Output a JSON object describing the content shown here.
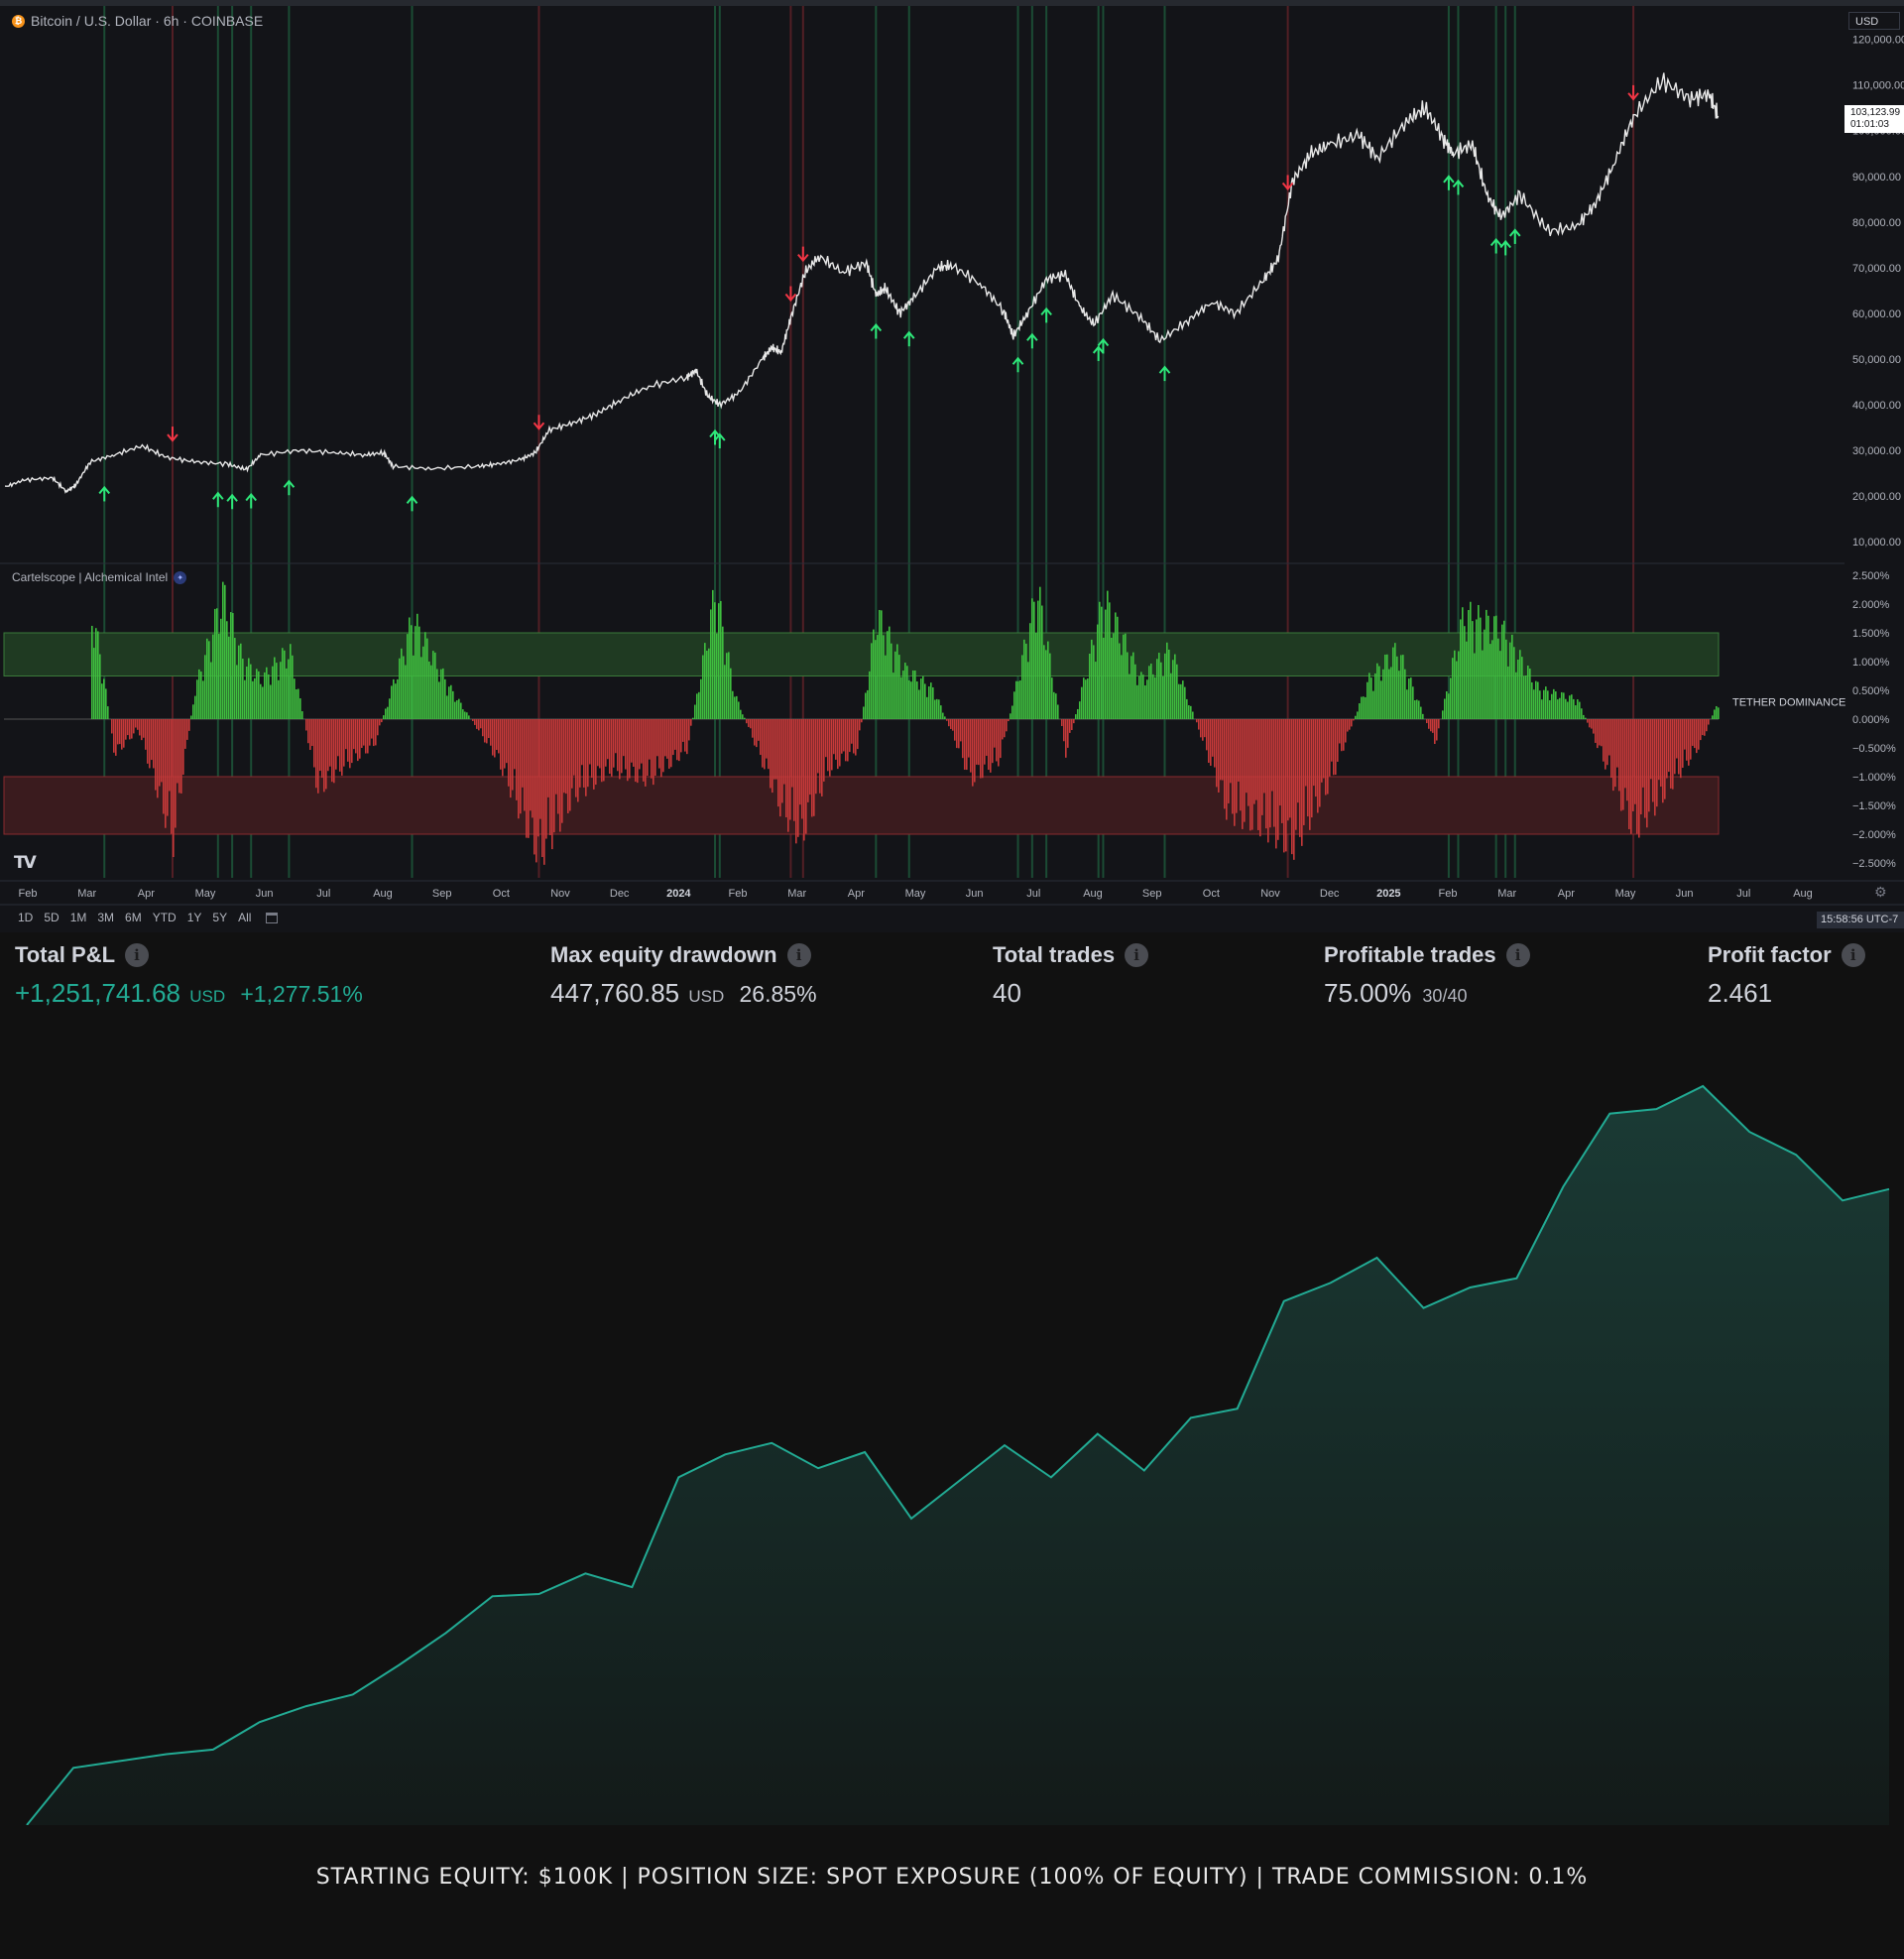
{
  "chart": {
    "symbol": "Bitcoin / U.S. Dollar · 6h · COINBASE",
    "currency": "USD",
    "last_price": "103,123.99",
    "countdown": "01:01:03",
    "price_axis": [
      "120,000.00",
      "110,000.00",
      "100,000.00",
      "90,000.00",
      "80,000.00",
      "70,000.00",
      "60,000.00",
      "50,000.00",
      "40,000.00",
      "30,000.00",
      "20,000.00",
      "10,000.00"
    ],
    "indicator_title": "Cartelscope | Alchemical Intel",
    "indicator_label": "TETHER DOMINANCE",
    "indicator_axis": [
      "2.500%",
      "2.000%",
      "1.500%",
      "1.000%",
      "0.500%",
      "0.000%",
      "−0.500%",
      "−1.000%",
      "−1.500%",
      "−2.000%",
      "−2.500%"
    ],
    "time_axis": [
      "Feb",
      "Mar",
      "Apr",
      "May",
      "Jun",
      "Jul",
      "Aug",
      "Sep",
      "Oct",
      "Nov",
      "Dec",
      "2024",
      "Feb",
      "Mar",
      "Apr",
      "May",
      "Jun",
      "Jul",
      "Aug",
      "Sep",
      "Oct",
      "Nov",
      "Dec",
      "2025",
      "Feb",
      "Mar",
      "Apr",
      "May",
      "Jun",
      "Jul",
      "Aug"
    ],
    "time_axis_bold": [
      "2024",
      "2025"
    ],
    "range_buttons": [
      "1D",
      "5D",
      "1M",
      "3M",
      "6M",
      "YTD",
      "1Y",
      "5Y",
      "All"
    ],
    "clock": "15:58:56 UTC-7",
    "colors": {
      "buy": "#2ee87a",
      "sell": "#f23645",
      "bull_bar": "#3fbf3f",
      "bear_bar": "#c83a3a",
      "price": "#e8e8e8"
    },
    "price_path": [
      [
        0,
        22000
      ],
      [
        0.02,
        23500
      ],
      [
        0.05,
        24000
      ],
      [
        0.065,
        21000
      ],
      [
        0.075,
        22500
      ],
      [
        0.09,
        27500
      ],
      [
        0.115,
        29000
      ],
      [
        0.145,
        31000
      ],
      [
        0.17,
        28500
      ],
      [
        0.2,
        27500
      ],
      [
        0.235,
        27000
      ],
      [
        0.255,
        25800
      ],
      [
        0.27,
        29000
      ],
      [
        0.31,
        30000
      ],
      [
        0.35,
        29500
      ],
      [
        0.38,
        29000
      ],
      [
        0.4,
        29500
      ],
      [
        0.41,
        26500
      ],
      [
        0.45,
        26000
      ],
      [
        0.5,
        26500
      ],
      [
        0.52,
        27000
      ],
      [
        0.545,
        28000
      ],
      [
        0.56,
        29500
      ],
      [
        0.575,
        34500
      ],
      [
        0.6,
        36000
      ],
      [
        0.625,
        38000
      ],
      [
        0.65,
        41000
      ],
      [
        0.68,
        44000
      ],
      [
        0.72,
        46000
      ],
      [
        0.73,
        47500
      ],
      [
        0.742,
        42000
      ],
      [
        0.755,
        40000
      ],
      [
        0.775,
        42500
      ],
      [
        0.8,
        50000
      ],
      [
        0.81,
        52500
      ],
      [
        0.82,
        51500
      ],
      [
        0.83,
        59000
      ],
      [
        0.845,
        69000
      ],
      [
        0.86,
        72500
      ],
      [
        0.885,
        69000
      ],
      [
        0.91,
        71000
      ],
      [
        0.92,
        64000
      ],
      [
        0.93,
        65500
      ],
      [
        0.945,
        60000
      ],
      [
        0.96,
        63500
      ],
      [
        0.985,
        70000
      ],
      [
        1.0,
        70500
      ],
      [
        1.03,
        66500
      ],
      [
        1.055,
        60500
      ],
      [
        1.065,
        55000
      ],
      [
        1.08,
        60000
      ],
      [
        1.1,
        67500
      ],
      [
        1.12,
        68500
      ],
      [
        1.135,
        61500
      ],
      [
        1.15,
        57500
      ],
      [
        1.17,
        64000
      ],
      [
        1.2,
        59000
      ],
      [
        1.22,
        54000
      ],
      [
        1.25,
        58500
      ],
      [
        1.275,
        62500
      ],
      [
        1.3,
        60000
      ],
      [
        1.33,
        67500
      ],
      [
        1.345,
        72000
      ],
      [
        1.36,
        89000
      ],
      [
        1.38,
        95000
      ],
      [
        1.4,
        97000
      ],
      [
        1.43,
        99000
      ],
      [
        1.45,
        94000
      ],
      [
        1.48,
        102000
      ],
      [
        1.5,
        105000
      ],
      [
        1.52,
        98000
      ],
      [
        1.53,
        95000
      ],
      [
        1.55,
        97000
      ],
      [
        1.565,
        86000
      ],
      [
        1.58,
        81000
      ],
      [
        1.6,
        86000
      ],
      [
        1.63,
        78000
      ],
      [
        1.66,
        79000
      ],
      [
        1.68,
        84000
      ],
      [
        1.7,
        93000
      ],
      [
        1.72,
        103000
      ],
      [
        1.75,
        111000
      ],
      [
        1.78,
        107000
      ],
      [
        1.8,
        108000
      ],
      [
        1.81,
        103000
      ]
    ],
    "buy_markers": [
      0.105,
      0.225,
      0.24,
      0.26,
      0.3,
      0.43,
      0.75,
      0.755,
      0.92,
      0.955,
      1.07,
      1.085,
      1.1,
      1.155,
      1.16,
      1.225,
      1.525,
      1.535,
      1.575,
      1.585,
      1.595
    ],
    "sell_markers": [
      0.177,
      0.564,
      0.83,
      0.843,
      1.355,
      1.72
    ],
    "green_lines": [
      0.105,
      0.225,
      0.24,
      0.26,
      0.3,
      0.43,
      0.75,
      0.755,
      0.92,
      0.955,
      1.07,
      1.085,
      1.1,
      1.155,
      1.16,
      1.225,
      1.525,
      1.535,
      1.575,
      1.585,
      1.595
    ],
    "red_lines": [
      0.177,
      0.564,
      0.83,
      0.843,
      1.355,
      1.72
    ],
    "dominance_bars": [
      {
        "t": 0.09,
        "v": 2.2
      },
      {
        "t": 0.1,
        "v": 1.3
      },
      {
        "t": 0.115,
        "v": -0.7
      },
      {
        "t": 0.125,
        "v": -0.5
      },
      {
        "t": 0.14,
        "v": -0.2
      },
      {
        "t": 0.177,
        "v": -2.4
      },
      {
        "t": 0.2,
        "v": 0.6
      },
      {
        "t": 0.23,
        "v": 2.5
      },
      {
        "t": 0.25,
        "v": 1.2
      },
      {
        "t": 0.27,
        "v": 0.8
      },
      {
        "t": 0.3,
        "v": 1.4
      },
      {
        "t": 0.33,
        "v": -1.4
      },
      {
        "t": 0.36,
        "v": -0.9
      },
      {
        "t": 0.39,
        "v": -0.5
      },
      {
        "t": 0.43,
        "v": 2.0
      },
      {
        "t": 0.47,
        "v": 0.6
      },
      {
        "t": 0.52,
        "v": -0.8
      },
      {
        "t": 0.564,
        "v": -2.7
      },
      {
        "t": 0.6,
        "v": -1.5
      },
      {
        "t": 0.64,
        "v": -1.0
      },
      {
        "t": 0.68,
        "v": -1.2
      },
      {
        "t": 0.72,
        "v": -0.6
      },
      {
        "t": 0.75,
        "v": 2.6
      },
      {
        "t": 0.77,
        "v": 0.5
      },
      {
        "t": 0.82,
        "v": -1.8
      },
      {
        "t": 0.84,
        "v": -2.3
      },
      {
        "t": 0.87,
        "v": -1.0
      },
      {
        "t": 0.9,
        "v": -0.6
      },
      {
        "t": 0.92,
        "v": 2.1
      },
      {
        "t": 0.95,
        "v": 1.0
      },
      {
        "t": 0.98,
        "v": 0.6
      },
      {
        "t": 1.02,
        "v": -1.2
      },
      {
        "t": 1.05,
        "v": -0.8
      },
      {
        "t": 1.09,
        "v": 2.6
      },
      {
        "t": 1.12,
        "v": -0.7
      },
      {
        "t": 1.16,
        "v": 2.4
      },
      {
        "t": 1.2,
        "v": 0.8
      },
      {
        "t": 1.23,
        "v": 1.4
      },
      {
        "t": 1.29,
        "v": -1.8
      },
      {
        "t": 1.33,
        "v": -2.1
      },
      {
        "t": 1.36,
        "v": -2.5
      },
      {
        "t": 1.4,
        "v": -1.2
      },
      {
        "t": 1.44,
        "v": 0.8
      },
      {
        "t": 1.47,
        "v": 1.4
      },
      {
        "t": 1.51,
        "v": -0.5
      },
      {
        "t": 1.54,
        "v": 2.1
      },
      {
        "t": 1.58,
        "v": 1.8
      },
      {
        "t": 1.62,
        "v": 0.6
      },
      {
        "t": 1.66,
        "v": 0.4
      },
      {
        "t": 1.72,
        "v": -2.2
      },
      {
        "t": 1.75,
        "v": -1.5
      },
      {
        "t": 1.79,
        "v": -0.5
      },
      {
        "t": 1.81,
        "v": 0.4
      }
    ]
  },
  "stats": {
    "total_pnl": {
      "label": "Total P&L",
      "value": "+1,251,741.68",
      "unit": "USD",
      "pct": "+1,277.51%"
    },
    "max_drawdown": {
      "label": "Max equity drawdown",
      "value": "447,760.85",
      "unit": "USD",
      "pct": "26.85%"
    },
    "total_trades": {
      "label": "Total trades",
      "value": "40"
    },
    "profitable_trades": {
      "label": "Profitable trades",
      "value": "75.00%",
      "sub": "30/40"
    },
    "profit_factor": {
      "label": "Profit factor",
      "value": "2.461"
    }
  },
  "equity_curve": {
    "colors": {
      "line": "#22ab94",
      "fill_top": "#1a3b35",
      "fill_bottom": "#131a19"
    },
    "values": [
      100000,
      225000,
      240000,
      255000,
      265000,
      325000,
      360000,
      385000,
      450000,
      520000,
      600000,
      605000,
      650000,
      620000,
      860000,
      910000,
      935000,
      880000,
      915000,
      770000,
      850000,
      930000,
      860000,
      955000,
      875000,
      990000,
      1010000,
      1245000,
      1285000,
      1340000,
      1230000,
      1275000,
      1295000,
      1495000,
      1655000,
      1665000,
      1715000,
      1615000,
      1565000,
      1465000,
      1490000
    ]
  },
  "footer": {
    "text": "STARTING EQUITY: $100K  |  POSITION SIZE: SPOT EXPOSURE (100% OF EQUITY)  |  TRADE COMMISSION: 0.1%"
  }
}
